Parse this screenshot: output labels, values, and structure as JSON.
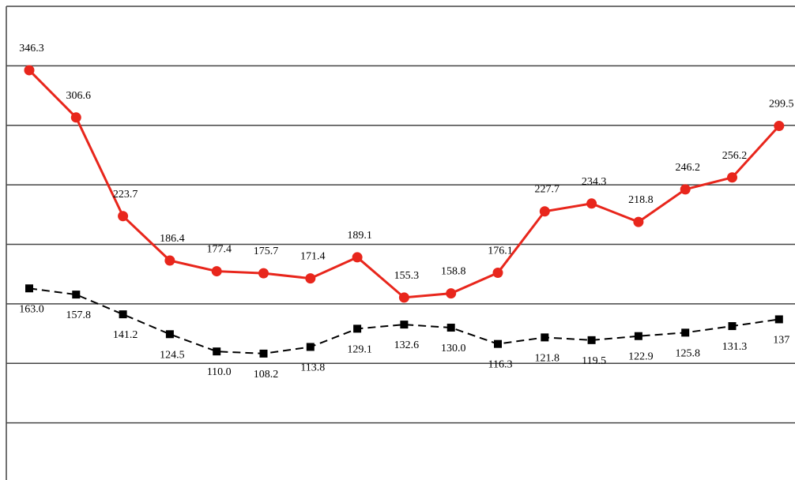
{
  "chart_data": {
    "type": "line",
    "categories": [
      null,
      null,
      null,
      null,
      null,
      null,
      null,
      null,
      null,
      null,
      null,
      null,
      null,
      null,
      null,
      null,
      null
    ],
    "series": [
      {
        "color": "#e8261c",
        "marker": "circle",
        "dashed": false,
        "values": [
          346.3,
          306.6,
          223.7,
          186.4,
          177.4,
          175.7,
          171.4,
          189.1,
          155.3,
          158.8,
          176.1,
          227.7,
          234.3,
          218.8,
          246.2,
          256.2,
          299.5
        ],
        "value_labels": [
          "346.3",
          "306.6",
          "223.7",
          "186.4",
          "177.4",
          "175.7",
          "171.4",
          "189.1",
          "155.3",
          "158.8",
          "176.1",
          "227.7",
          "234.3",
          "218.8",
          "246.2",
          "256.2",
          "299.5"
        ]
      },
      {
        "color": "#000000",
        "marker": "square",
        "dashed": true,
        "values": [
          163.0,
          157.8,
          141.2,
          124.5,
          110.0,
          108.2,
          113.8,
          129.1,
          132.6,
          130.0,
          116.3,
          121.8,
          119.5,
          122.9,
          125.8,
          131.3,
          137
        ],
        "value_labels": [
          "163.0",
          "157.8",
          "141.2",
          "124.5",
          "110.0",
          "108.2",
          "113.8",
          "129.1",
          "132.6",
          "130.0",
          "116.3",
          "121.8",
          "119.5",
          "122.9",
          "125.8",
          "131.3",
          "137"
        ]
      }
    ],
    "ylim": [
      0,
      400
    ],
    "yticks": [
      50,
      100,
      150,
      200,
      250,
      300,
      350,
      400
    ],
    "grid": true
  }
}
